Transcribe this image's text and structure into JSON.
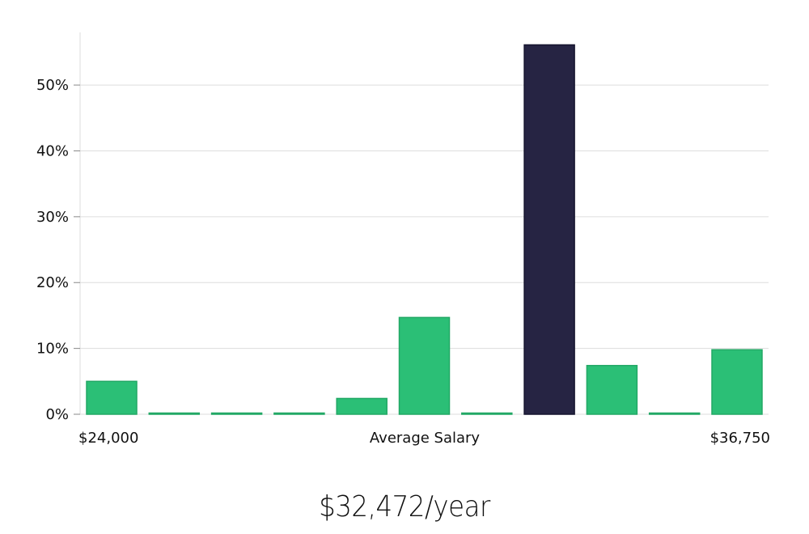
{
  "chart_data": {
    "type": "bar",
    "title": "",
    "xlabel": "Average Salary",
    "ylabel": "",
    "x_min_label": "$24,000",
    "x_max_label": "$36,750",
    "ylim": [
      0,
      58
    ],
    "yticks": [
      0,
      10,
      20,
      30,
      40,
      50
    ],
    "ytick_labels": [
      "0%",
      "10%",
      "20%",
      "30%",
      "40%",
      "50%"
    ],
    "grid": true,
    "bins": 11,
    "values": [
      5.0,
      0.1,
      0.1,
      0.1,
      2.4,
      14.7,
      0.1,
      56.1,
      7.4,
      0.1,
      9.8
    ],
    "highlight_index": 7,
    "colors": {
      "bar": "#2bbf76",
      "highlight": "#262443",
      "grid": "#dddddd"
    }
  },
  "summary": {
    "value": "$32,472/year"
  }
}
